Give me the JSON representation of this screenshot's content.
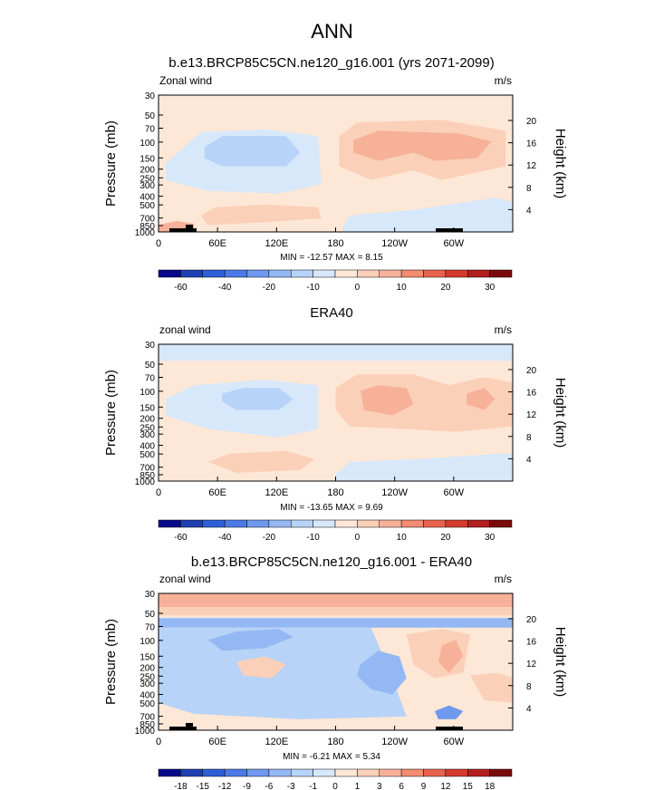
{
  "main_title": "ANN",
  "chart_data": [
    {
      "type": "heatmap",
      "title": "b.e13.BRCP85C5CN.ne120_g16.001 (yrs 2071-2099)",
      "variable_label": "Zonal wind",
      "units_label": "m/s",
      "ylabel": "Pressure (mb)",
      "y2label": "Height (km)",
      "xticks": [
        "0",
        "60E",
        "120E",
        "180",
        "120W",
        "60W"
      ],
      "yticks": [
        "30",
        "50",
        "70",
        "100",
        "150",
        "200",
        "250",
        "300",
        "400",
        "500",
        "700",
        "850",
        "1000"
      ],
      "y2ticks": [
        "20",
        "16",
        "12",
        "8",
        "4"
      ],
      "stats": "MIN = -12.57  MAX =  8.15",
      "colorbar_labels": [
        "-60",
        "-40",
        "-20",
        "-10",
        "0",
        "10",
        "20",
        "30"
      ],
      "colorbar_colors": [
        "#08088a",
        "#1f3fb0",
        "#2e5fd6",
        "#4c7ae8",
        "#6f98ef",
        "#94b8f4",
        "#b7d3f7",
        "#d7e8fa",
        "#fde7d7",
        "#fbd0b8",
        "#f7b199",
        "#f28b70",
        "#e9624d",
        "#d43b2d",
        "#b21e1d",
        "#7d0a0a"
      ]
    },
    {
      "type": "heatmap",
      "title": "ERA40",
      "variable_label": "zonal wind",
      "units_label": "m/s",
      "ylabel": "Pressure (mb)",
      "y2label": "Height (km)",
      "xticks": [
        "0",
        "60E",
        "120E",
        "180",
        "120W",
        "60W"
      ],
      "yticks": [
        "30",
        "50",
        "70",
        "100",
        "150",
        "200",
        "250",
        "300",
        "400",
        "500",
        "700",
        "850",
        "1000"
      ],
      "y2ticks": [
        "20",
        "16",
        "12",
        "8",
        "4"
      ],
      "stats": "MIN = -13.65  MAX =  9.69",
      "colorbar_labels": [
        "-60",
        "-40",
        "-20",
        "-10",
        "0",
        "10",
        "20",
        "30"
      ],
      "colorbar_colors": [
        "#08088a",
        "#1f3fb0",
        "#2e5fd6",
        "#4c7ae8",
        "#6f98ef",
        "#94b8f4",
        "#b7d3f7",
        "#d7e8fa",
        "#fde7d7",
        "#fbd0b8",
        "#f7b199",
        "#f28b70",
        "#e9624d",
        "#d43b2d",
        "#b21e1d",
        "#7d0a0a"
      ]
    },
    {
      "type": "heatmap",
      "title": "b.e13.BRCP85C5CN.ne120_g16.001 - ERA40",
      "variable_label": "zonal wind",
      "units_label": "m/s",
      "ylabel": "Pressure (mb)",
      "y2label": "Height (km)",
      "xticks": [
        "0",
        "60E",
        "120E",
        "180",
        "120W",
        "60W"
      ],
      "yticks": [
        "30",
        "50",
        "70",
        "100",
        "150",
        "200",
        "250",
        "300",
        "400",
        "500",
        "700",
        "850",
        "1000"
      ],
      "y2ticks": [
        "20",
        "16",
        "12",
        "8",
        "4"
      ],
      "stats": "MIN =  -6.21  MAX =  5.34",
      "colorbar_labels": [
        "-18",
        "-15",
        "-12",
        "-9",
        "-6",
        "-3",
        "-1",
        "0",
        "1",
        "3",
        "6",
        "9",
        "12",
        "15",
        "18"
      ],
      "colorbar_colors": [
        "#08088a",
        "#1f3fb0",
        "#2e5fd6",
        "#4c7ae8",
        "#6f98ef",
        "#94b8f4",
        "#b7d3f7",
        "#d7e8fa",
        "#fde7d7",
        "#fbd0b8",
        "#f7b199",
        "#f28b70",
        "#e9624d",
        "#d43b2d",
        "#b21e1d",
        "#7d0a0a"
      ]
    }
  ]
}
